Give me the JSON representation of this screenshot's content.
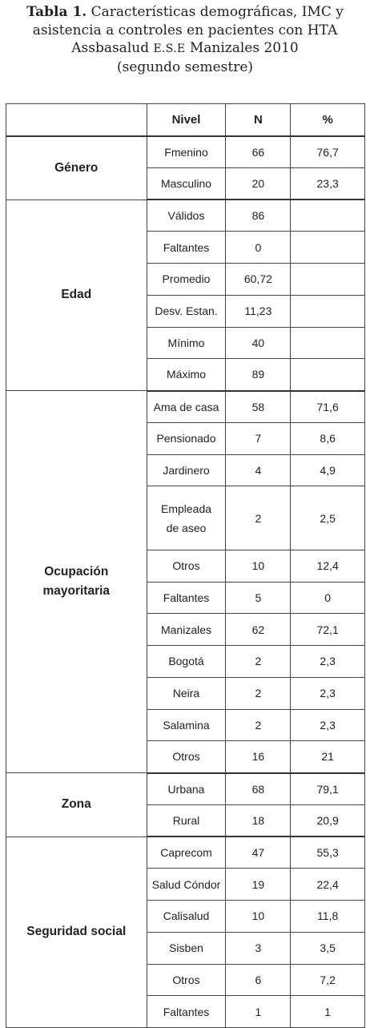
{
  "caption": {
    "label": "Tabla 1.",
    "line1_rest": "Características demográficas, IMC y",
    "line2": "asistencia a controles en pacientes con HTA",
    "line3_a": "Assbasalud",
    "line3_b": "E.S.E",
    "line3_c": "Manizales 2010",
    "line4": "(segundo semestre)"
  },
  "table": {
    "headers": [
      "",
      "Nivel",
      "N",
      "%"
    ],
    "groups": [
      {
        "label": "Género",
        "rows": [
          {
            "nivel": "Fmenino",
            "n": "66",
            "pct": "76,7"
          },
          {
            "nivel": "Masculino",
            "n": "20",
            "pct": "23,3"
          }
        ]
      },
      {
        "label": "Edad",
        "rows": [
          {
            "nivel": "Válidos",
            "n": "86",
            "pct": ""
          },
          {
            "nivel": "Faltantes",
            "n": "0",
            "pct": ""
          },
          {
            "nivel": "Promedio",
            "n": "60,72",
            "pct": ""
          },
          {
            "nivel": "Desv. Estan.",
            "n": "11,23",
            "pct": ""
          },
          {
            "nivel": "Mínimo",
            "n": "40",
            "pct": ""
          },
          {
            "nivel": "Máximo",
            "n": "89",
            "pct": ""
          }
        ]
      },
      {
        "label": "Ocupación mayoritaria",
        "rows": [
          {
            "nivel": "Ama de casa",
            "n": "58",
            "pct": "71,6"
          },
          {
            "nivel": "Pensionado",
            "n": "7",
            "pct": "8,6"
          },
          {
            "nivel": "Jardinero",
            "n": "4",
            "pct": "4,9"
          },
          {
            "nivel": "Empleada de aseo",
            "n": "2",
            "pct": "2,5",
            "tall": true
          },
          {
            "nivel": "Otros",
            "n": "10",
            "pct": "12,4"
          },
          {
            "nivel": "Faltantes",
            "n": "5",
            "pct": "0"
          },
          {
            "nivel": "Manizales",
            "n": "62",
            "pct": "72,1"
          },
          {
            "nivel": "Bogotá",
            "n": "2",
            "pct": "2,3"
          },
          {
            "nivel": "Neira",
            "n": "2",
            "pct": "2,3"
          },
          {
            "nivel": "Salamina",
            "n": "2",
            "pct": "2,3"
          },
          {
            "nivel": "Otros",
            "n": "16",
            "pct": "21"
          }
        ]
      },
      {
        "label": "Zona",
        "rows": [
          {
            "nivel": "Urbana",
            "n": "68",
            "pct": "79,1"
          },
          {
            "nivel": "Rural",
            "n": "18",
            "pct": "20,9"
          }
        ]
      },
      {
        "label": "Seguridad social",
        "rows": [
          {
            "nivel": "Caprecom",
            "n": "47",
            "pct": "55,3"
          },
          {
            "nivel": "Salud Cóndor",
            "n": "19",
            "pct": "22,4"
          },
          {
            "nivel": "Calisalud",
            "n": "10",
            "pct": "11,8"
          },
          {
            "nivel": "Sisben",
            "n": "3",
            "pct": "3,5"
          },
          {
            "nivel": "Otros",
            "n": "6",
            "pct": "7,2"
          },
          {
            "nivel": "Faltantes",
            "n": "1",
            "pct": "1"
          }
        ]
      }
    ]
  }
}
